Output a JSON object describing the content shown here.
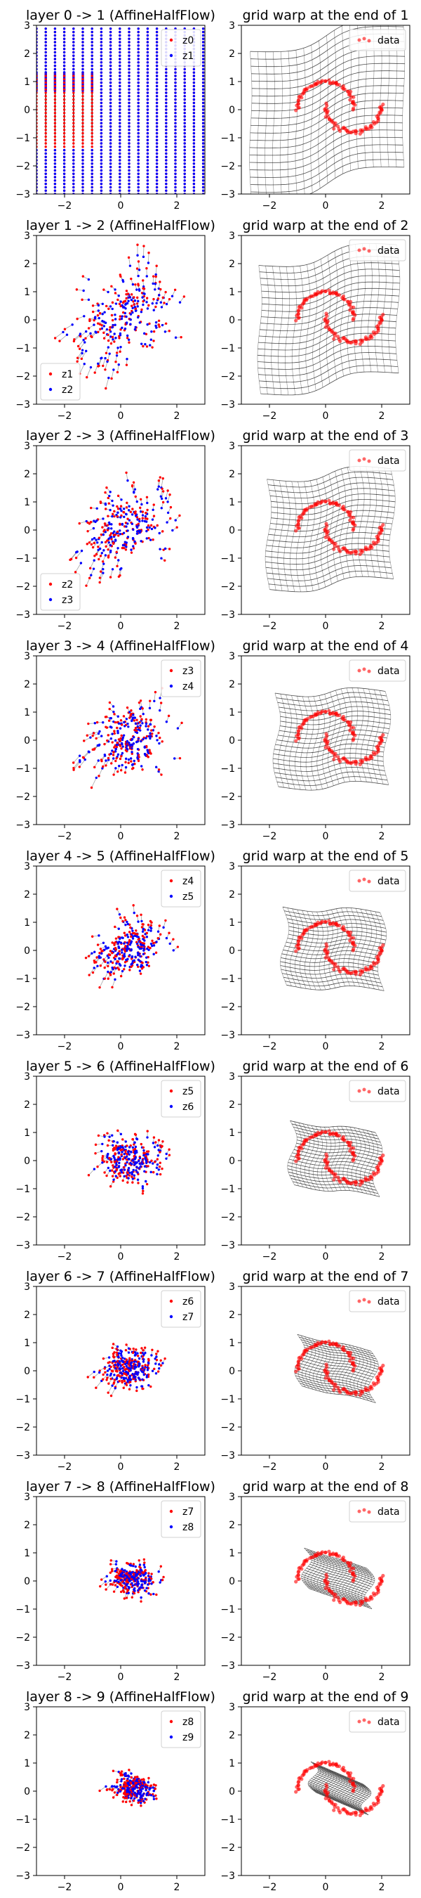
{
  "figure": {
    "rows": 9,
    "colors": {
      "red": "#ff0000",
      "blue": "#0000ff",
      "line": "#000000",
      "data": "#ff0000"
    }
  },
  "chart_data": [
    {
      "type": "scatter",
      "title": "layer 0 -> 1 (AffineHalfFlow)",
      "legend": [
        "z0",
        "z1"
      ],
      "legend_loc": "upper right",
      "xlim": [
        -3,
        3
      ],
      "ylim": [
        -3,
        3
      ],
      "xticks": [
        "−2",
        "0",
        "2"
      ],
      "yticks": [
        "−3",
        "−2",
        "−1",
        "0",
        "1",
        "2",
        "3"
      ]
    },
    {
      "type": "line",
      "title": "grid warp at the end of 1",
      "legend": [
        "data"
      ],
      "legend_loc": "upper right",
      "xlim": [
        -3,
        3
      ],
      "ylim": [
        -3,
        3
      ],
      "xticks": [
        "−2",
        "0",
        "2"
      ],
      "yticks": [
        "−3",
        "−2",
        "−1",
        "0",
        "1",
        "2",
        "3"
      ]
    },
    {
      "type": "scatter",
      "title": "layer 1 -> 2 (AffineHalfFlow)",
      "legend": [
        "z1",
        "z2"
      ],
      "legend_loc": "lower left",
      "xlim": [
        -3,
        3
      ],
      "ylim": [
        -3,
        3
      ],
      "xticks": [
        "−2",
        "0",
        "2"
      ],
      "yticks": [
        "−3",
        "−2",
        "−1",
        "0",
        "1",
        "2",
        "3"
      ]
    },
    {
      "type": "line",
      "title": "grid warp at the end of 2",
      "legend": [
        "data"
      ],
      "legend_loc": "upper right",
      "xlim": [
        -3,
        3
      ],
      "ylim": [
        -3,
        3
      ],
      "xticks": [
        "−2",
        "0",
        "2"
      ],
      "yticks": [
        "−3",
        "−2",
        "−1",
        "0",
        "1",
        "2",
        "3"
      ]
    },
    {
      "type": "scatter",
      "title": "layer 2 -> 3 (AffineHalfFlow)",
      "legend": [
        "z2",
        "z3"
      ],
      "legend_loc": "lower left",
      "xlim": [
        -3,
        3
      ],
      "ylim": [
        -3,
        3
      ],
      "xticks": [
        "−2",
        "0",
        "2"
      ],
      "yticks": [
        "−3",
        "−2",
        "−1",
        "0",
        "1",
        "2",
        "3"
      ]
    },
    {
      "type": "line",
      "title": "grid warp at the end of 3",
      "legend": [
        "data"
      ],
      "legend_loc": "upper right",
      "xlim": [
        -3,
        3
      ],
      "ylim": [
        -3,
        3
      ],
      "xticks": [
        "−2",
        "0",
        "2"
      ],
      "yticks": [
        "−3",
        "−2",
        "−1",
        "0",
        "1",
        "2",
        "3"
      ]
    },
    {
      "type": "scatter",
      "title": "layer 3 -> 4 (AffineHalfFlow)",
      "legend": [
        "z3",
        "z4"
      ],
      "legend_loc": "upper right",
      "xlim": [
        -3,
        3
      ],
      "ylim": [
        -3,
        3
      ],
      "xticks": [
        "−2",
        "0",
        "2"
      ],
      "yticks": [
        "−3",
        "−2",
        "−1",
        "0",
        "1",
        "2",
        "3"
      ]
    },
    {
      "type": "line",
      "title": "grid warp at the end of 4",
      "legend": [
        "data"
      ],
      "legend_loc": "upper right",
      "xlim": [
        -3,
        3
      ],
      "ylim": [
        -3,
        3
      ],
      "xticks": [
        "−2",
        "0",
        "2"
      ],
      "yticks": [
        "−3",
        "−2",
        "−1",
        "0",
        "1",
        "2",
        "3"
      ]
    },
    {
      "type": "scatter",
      "title": "layer 4 -> 5 (AffineHalfFlow)",
      "legend": [
        "z4",
        "z5"
      ],
      "legend_loc": "upper right",
      "xlim": [
        -3,
        3
      ],
      "ylim": [
        -3,
        3
      ],
      "xticks": [
        "−2",
        "0",
        "2"
      ],
      "yticks": [
        "−3",
        "−2",
        "−1",
        "0",
        "1",
        "2",
        "3"
      ]
    },
    {
      "type": "line",
      "title": "grid warp at the end of 5",
      "legend": [
        "data"
      ],
      "legend_loc": "upper right",
      "xlim": [
        -3,
        3
      ],
      "ylim": [
        -3,
        3
      ],
      "xticks": [
        "−2",
        "0",
        "2"
      ],
      "yticks": [
        "−3",
        "−2",
        "−1",
        "0",
        "1",
        "2",
        "3"
      ]
    },
    {
      "type": "scatter",
      "title": "layer 5 -> 6 (AffineHalfFlow)",
      "legend": [
        "z5",
        "z6"
      ],
      "legend_loc": "upper right",
      "xlim": [
        -3,
        3
      ],
      "ylim": [
        -3,
        3
      ],
      "xticks": [
        "−2",
        "0",
        "2"
      ],
      "yticks": [
        "−3",
        "−2",
        "−1",
        "0",
        "1",
        "2",
        "3"
      ]
    },
    {
      "type": "line",
      "title": "grid warp at the end of 6",
      "legend": [
        "data"
      ],
      "legend_loc": "upper right",
      "xlim": [
        -3,
        3
      ],
      "ylim": [
        -3,
        3
      ],
      "xticks": [
        "−2",
        "0",
        "2"
      ],
      "yticks": [
        "−3",
        "−2",
        "−1",
        "0",
        "1",
        "2",
        "3"
      ]
    },
    {
      "type": "scatter",
      "title": "layer 6 -> 7 (AffineHalfFlow)",
      "legend": [
        "z6",
        "z7"
      ],
      "legend_loc": "upper right",
      "xlim": [
        -3,
        3
      ],
      "ylim": [
        -3,
        3
      ],
      "xticks": [
        "−2",
        "0",
        "2"
      ],
      "yticks": [
        "−3",
        "−2",
        "−1",
        "0",
        "1",
        "2",
        "3"
      ]
    },
    {
      "type": "line",
      "title": "grid warp at the end of 7",
      "legend": [
        "data"
      ],
      "legend_loc": "upper right",
      "xlim": [
        -3,
        3
      ],
      "ylim": [
        -3,
        3
      ],
      "xticks": [
        "−2",
        "0",
        "2"
      ],
      "yticks": [
        "−3",
        "−2",
        "−1",
        "0",
        "1",
        "2",
        "3"
      ]
    },
    {
      "type": "scatter",
      "title": "layer 7 -> 8 (AffineHalfFlow)",
      "legend": [
        "z7",
        "z8"
      ],
      "legend_loc": "upper right",
      "xlim": [
        -3,
        3
      ],
      "ylim": [
        -3,
        3
      ],
      "xticks": [
        "−2",
        "0",
        "2"
      ],
      "yticks": [
        "−3",
        "−2",
        "−1",
        "0",
        "1",
        "2",
        "3"
      ]
    },
    {
      "type": "line",
      "title": "grid warp at the end of 8",
      "legend": [
        "data"
      ],
      "legend_loc": "upper right",
      "xlim": [
        -3,
        3
      ],
      "ylim": [
        -3,
        3
      ],
      "xticks": [
        "−2",
        "0",
        "2"
      ],
      "yticks": [
        "−3",
        "−2",
        "−1",
        "0",
        "1",
        "2",
        "3"
      ]
    },
    {
      "type": "scatter",
      "title": "layer 8 -> 9 (AffineHalfFlow)",
      "legend": [
        "z8",
        "z9"
      ],
      "legend_loc": "upper right",
      "xlim": [
        -3,
        3
      ],
      "ylim": [
        -3,
        3
      ],
      "xticks": [
        "−2",
        "0",
        "2"
      ],
      "yticks": [
        "−3",
        "−2",
        "−1",
        "0",
        "1",
        "2",
        "3"
      ]
    },
    {
      "type": "line",
      "title": "grid warp at the end of 9",
      "legend": [
        "data"
      ],
      "legend_loc": "upper right",
      "xlim": [
        -3,
        3
      ],
      "ylim": [
        -3,
        3
      ],
      "xticks": [
        "−2",
        "0",
        "2"
      ],
      "yticks": [
        "−3",
        "−2",
        "−1",
        "0",
        "1",
        "2",
        "3"
      ]
    }
  ]
}
